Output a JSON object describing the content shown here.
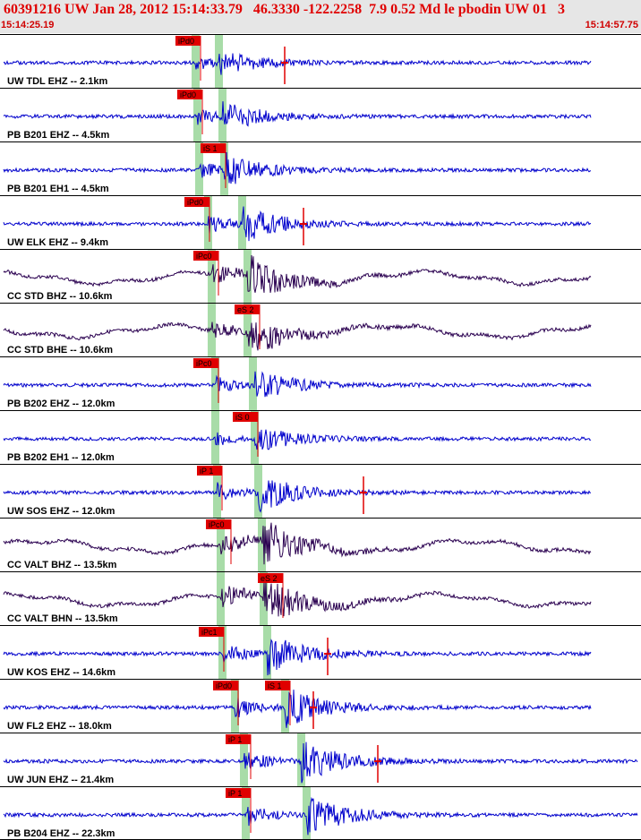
{
  "header": {
    "title": "60391216 UW Jan 28, 2012 15:14:33.79   46.3330 -122.2258  7.9 0.52 Md le pbodin UW 01   3",
    "start_time": "15:14:25.19",
    "end_time": "15:14:57.75"
  },
  "colors": {
    "trace_blue": "#0000cc",
    "trace_dark": "#2a0050",
    "pick_red": "#e00000",
    "window_green": "#a8dca8"
  },
  "traces": [
    {
      "label": "UW TDL EHZ -- 2.1km",
      "color": "blue",
      "p": 218,
      "s": 244,
      "amp": 14,
      "seed": 1,
      "picks": [
        {
          "text": "iPd0",
          "x": 196
        }
      ],
      "markers": [
        318
      ]
    },
    {
      "label": "PB B201 EHZ -- 4.5km",
      "color": "blue",
      "p": 220,
      "s": 248,
      "amp": 16,
      "seed": 2,
      "picks": [
        {
          "text": "iPd0",
          "x": 198
        }
      ],
      "markers": []
    },
    {
      "label": "PB B201 EH1 -- 4.5km",
      "color": "blue",
      "p": 222,
      "s": 250,
      "amp": 18,
      "seed": 3,
      "picks": [
        {
          "text": "iS 1",
          "x": 224
        }
      ],
      "markers": []
    },
    {
      "label": "UW ELK EHZ -- 9.4km",
      "color": "blue",
      "p": 232,
      "s": 270,
      "amp": 20,
      "seed": 4,
      "picks": [
        {
          "text": "iPd0",
          "x": 206
        }
      ],
      "markers": [
        339
      ]
    },
    {
      "label": "CC STD BHZ -- 10.6km",
      "color": "dark",
      "p": 236,
      "s": 276,
      "amp": 22,
      "seed": 5,
      "picks": [
        {
          "text": "iPc0",
          "x": 216
        }
      ],
      "markers": []
    },
    {
      "label": "CC STD BHE -- 10.6km",
      "color": "dark",
      "p": 236,
      "s": 276,
      "amp": 20,
      "seed": 6,
      "picks": [
        {
          "text": "eS 2",
          "x": 262
        }
      ],
      "markers": []
    },
    {
      "label": "PB B202 EHZ -- 12.0km",
      "color": "blue",
      "p": 240,
      "s": 282,
      "amp": 18,
      "seed": 7,
      "picks": [
        {
          "text": "iPc0",
          "x": 216
        }
      ],
      "markers": []
    },
    {
      "label": "PB B202 EH1 -- 12.0km",
      "color": "blue",
      "p": 240,
      "s": 284,
      "amp": 14,
      "seed": 8,
      "picks": [
        {
          "text": "iS 0",
          "x": 260
        }
      ],
      "markers": []
    },
    {
      "label": "UW SOS EHZ -- 12.0km",
      "color": "blue",
      "p": 242,
      "s": 288,
      "amp": 20,
      "seed": 9,
      "picks": [
        {
          "text": "iP 1",
          "x": 220
        }
      ],
      "markers": [
        406
      ]
    },
    {
      "label": "CC VALT BHZ -- 13.5km",
      "color": "dark",
      "p": 246,
      "s": 292,
      "amp": 26,
      "seed": 10,
      "picks": [
        {
          "text": "iPc0",
          "x": 230
        }
      ],
      "markers": []
    },
    {
      "label": "CC VALT BHN -- 13.5km",
      "color": "dark",
      "p": 246,
      "s": 294,
      "amp": 26,
      "seed": 11,
      "picks": [
        {
          "text": "eS 2",
          "x": 288
        }
      ],
      "markers": []
    },
    {
      "label": "UW KOS EHZ -- 14.6km",
      "color": "blue",
      "p": 248,
      "s": 298,
      "amp": 22,
      "seed": 12,
      "picks": [
        {
          "text": "iPc1",
          "x": 222
        }
      ],
      "markers": [
        366
      ]
    },
    {
      "label": "UW FL2 EHZ -- 18.0km",
      "color": "blue",
      "p": 262,
      "s": 318,
      "amp": 22,
      "seed": 13,
      "picks": [
        {
          "text": "iPd0",
          "x": 238
        },
        {
          "text": "iS 1",
          "x": 296
        }
      ],
      "markers": [
        350
      ]
    },
    {
      "label": "UW JUN EHZ -- 21.4km",
      "color": "blue",
      "p": 272,
      "s": 336,
      "amp": 24,
      "seed": 14,
      "picks": [
        {
          "text": "iP 1",
          "x": 252
        }
      ],
      "markers": [
        422
      ]
    },
    {
      "label": "PB B204 EHZ -- 22.3km",
      "color": "blue",
      "p": 274,
      "s": 342,
      "amp": 24,
      "seed": 15,
      "picks": [
        {
          "text": "iP 1",
          "x": 252
        }
      ],
      "markers": []
    }
  ]
}
